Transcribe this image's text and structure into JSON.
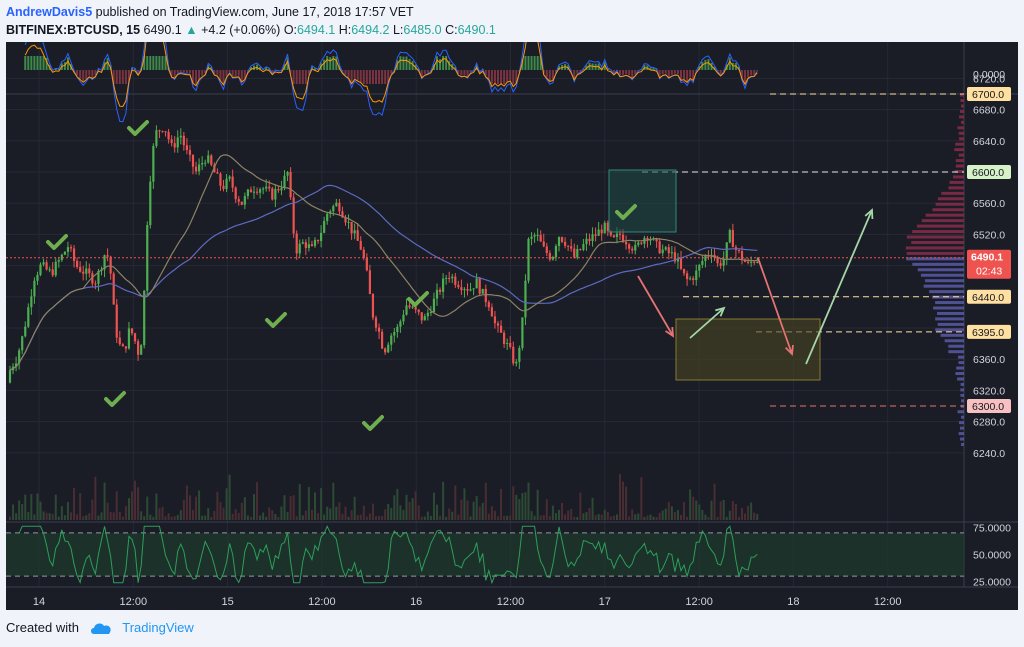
{
  "header": {
    "author": "AndrewDavis5",
    "published": " published on TradingView.com, June 17, 2018 17:57 VET",
    "symbol": "BITFINEX:BTCUSD, 15",
    "last": "6490.1",
    "change": "+4.2 (+0.06%)",
    "o_label": "O:",
    "o": "6494.1",
    "h_label": "H:",
    "h": "6494.2",
    "l_label": "L:",
    "l": "6485.0",
    "c_label": "C:",
    "c": "6490.1"
  },
  "footer": {
    "created": "Created with",
    "brand": "TradingView"
  },
  "colors": {
    "background": "#1a1c26",
    "grid": "#262936",
    "up": "#4caf50",
    "down": "#ef5350",
    "ma_fast": "#5c6bc0",
    "ma_slow": "#8d8463",
    "rsi": "#2e9e5a",
    "check": "#6fae4f",
    "green_arrow": "#a5d6a7",
    "red_arrow": "#e57373",
    "label_yellow": "#ffe0a0",
    "label_green": "#d7f2c7",
    "label_red": "#f8c0c0",
    "label_price": "#ef5350"
  },
  "chart_data": {
    "type": "candlestick",
    "timeframe": "15",
    "x_ticks": [
      "14",
      "12:00",
      "15",
      "12:00",
      "16",
      "12:00",
      "17",
      "12:00",
      "18",
      "12:00"
    ],
    "price_axis": {
      "ticks": [
        "6720.0",
        "6680.0",
        "6640.0",
        "6600.0",
        "6560.0",
        "6520.0",
        "6480.0",
        "6440.0",
        "6400.0",
        "6360.0",
        "6320.0",
        "6280.0",
        "6240.0"
      ],
      "range": [
        6200,
        6730
      ]
    },
    "macd_pane": {
      "tick": "0.0000"
    },
    "rsi_pane": {
      "ticks": [
        "75.0000",
        "50.0000",
        "25.0000"
      ],
      "levels": [
        70,
        30
      ],
      "range": [
        20,
        80
      ]
    },
    "price_tags": {
      "current": "6490.1",
      "countdown": "02:43",
      "levels": [
        {
          "value": "6700.0",
          "style": "yellow"
        },
        {
          "value": "6600.0",
          "style": "green"
        },
        {
          "value": "6440.0",
          "style": "yellow"
        },
        {
          "value": "6395.0",
          "style": "yellow"
        },
        {
          "value": "6300.0",
          "style": "red"
        }
      ]
    },
    "path": [
      [
        0,
        6330
      ],
      [
        5,
        6350
      ],
      [
        10,
        6360
      ],
      [
        15,
        6380
      ],
      [
        20,
        6410
      ],
      [
        28,
        6465
      ],
      [
        35,
        6480
      ],
      [
        45,
        6470
      ],
      [
        55,
        6490
      ],
      [
        62,
        6505
      ],
      [
        70,
        6480
      ],
      [
        80,
        6470
      ],
      [
        90,
        6460
      ],
      [
        100,
        6500
      ],
      [
        104,
        6480
      ],
      [
        108,
        6420
      ],
      [
        112,
        6380
      ],
      [
        118,
        6370
      ],
      [
        124,
        6400
      ],
      [
        130,
        6380
      ],
      [
        134,
        6360
      ],
      [
        138,
        6440
      ],
      [
        142,
        6560
      ],
      [
        146,
        6620
      ],
      [
        150,
        6650
      ],
      [
        158,
        6660
      ],
      [
        166,
        6630
      ],
      [
        174,
        6650
      ],
      [
        182,
        6620
      ],
      [
        190,
        6600
      ],
      [
        200,
        6620
      ],
      [
        208,
        6600
      ],
      [
        216,
        6580
      ],
      [
        224,
        6590
      ],
      [
        230,
        6570
      ],
      [
        236,
        6560
      ],
      [
        246,
        6580
      ],
      [
        256,
        6580
      ],
      [
        266,
        6570
      ],
      [
        276,
        6585
      ],
      [
        282,
        6600
      ],
      [
        286,
        6540
      ],
      [
        290,
        6500
      ],
      [
        298,
        6510
      ],
      [
        306,
        6500
      ],
      [
        314,
        6520
      ],
      [
        322,
        6550
      ],
      [
        332,
        6560
      ],
      [
        340,
        6540
      ],
      [
        348,
        6520
      ],
      [
        356,
        6500
      ],
      [
        362,
        6460
      ],
      [
        366,
        6420
      ],
      [
        372,
        6400
      ],
      [
        378,
        6370
      ],
      [
        384,
        6390
      ],
      [
        392,
        6400
      ],
      [
        400,
        6430
      ],
      [
        410,
        6420
      ],
      [
        418,
        6410
      ],
      [
        426,
        6430
      ],
      [
        434,
        6450
      ],
      [
        442,
        6470
      ],
      [
        450,
        6460
      ],
      [
        456,
        6455
      ],
      [
        464,
        6450
      ],
      [
        470,
        6460
      ],
      [
        478,
        6440
      ],
      [
        484,
        6430
      ],
      [
        490,
        6400
      ],
      [
        496,
        6390
      ],
      [
        504,
        6370
      ],
      [
        510,
        6350
      ],
      [
        516,
        6400
      ],
      [
        522,
        6510
      ],
      [
        530,
        6520
      ],
      [
        538,
        6500
      ],
      [
        546,
        6490
      ],
      [
        552,
        6520
      ],
      [
        560,
        6510
      ],
      [
        568,
        6490
      ],
      [
        574,
        6500
      ],
      [
        580,
        6510
      ],
      [
        590,
        6520
      ],
      [
        598,
        6530
      ],
      [
        606,
        6510
      ],
      [
        614,
        6520
      ],
      [
        622,
        6510
      ],
      [
        630,
        6500
      ],
      [
        636,
        6515
      ],
      [
        642,
        6520
      ],
      [
        650,
        6505
      ],
      [
        656,
        6500
      ],
      [
        664,
        6495
      ],
      [
        670,
        6490
      ],
      [
        676,
        6470
      ],
      [
        682,
        6460
      ],
      [
        690,
        6470
      ],
      [
        698,
        6490
      ],
      [
        706,
        6500
      ],
      [
        712,
        6480
      ],
      [
        718,
        6490
      ],
      [
        724,
        6520
      ],
      [
        730,
        6500
      ],
      [
        736,
        6490
      ],
      [
        742,
        6480
      ],
      [
        748,
        6488
      ]
    ],
    "annotations": {
      "check_marks": 10,
      "arrows": [
        "down",
        "up",
        "down",
        "up"
      ],
      "boxes": [
        "resistance-zone",
        "support-zone"
      ]
    }
  }
}
